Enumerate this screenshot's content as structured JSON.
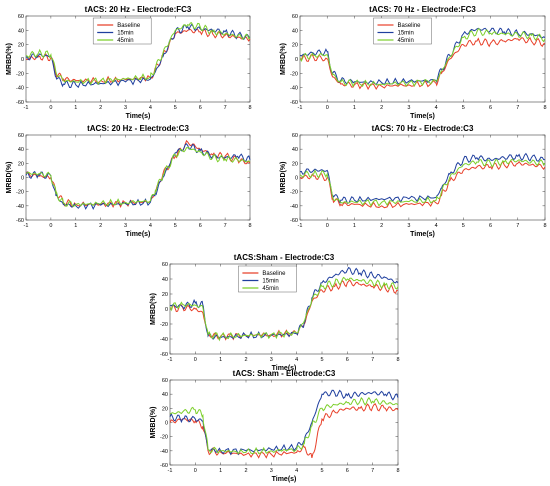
{
  "colors": {
    "Baseline": "#e8402a",
    "15min": "#1f3f9e",
    "45min": "#7ccf2a"
  },
  "chart_data": [
    {
      "type": "line",
      "title": "tACS: 20 Hz - Electrode:FC3",
      "xlabel": "Time(s)",
      "ylabel": "MRBD(%)",
      "xlim": [
        -1,
        8
      ],
      "ylim": [
        -60,
        60
      ],
      "xticks": [
        -1,
        0,
        1,
        2,
        3,
        4,
        5,
        6,
        7,
        8
      ],
      "yticks": [
        -60,
        -40,
        -20,
        0,
        20,
        40,
        60
      ],
      "legend": {
        "entries": [
          "Baseline",
          "15min",
          "45min"
        ],
        "placement": "top-center"
      },
      "series": [
        {
          "name": "Baseline",
          "x": [
            -1,
            -0.5,
            0,
            0.2,
            0.5,
            1,
            2,
            3,
            4,
            4.2,
            4.5,
            5,
            5.5,
            6,
            6.5,
            7,
            7.5,
            8
          ],
          "y": [
            0,
            3,
            2,
            -20,
            -28,
            -30,
            -30,
            -29,
            -26,
            -15,
            5,
            35,
            40,
            38,
            35,
            33,
            30,
            28
          ]
        },
        {
          "name": "15min",
          "x": [
            -1,
            -0.5,
            0,
            0.2,
            0.5,
            1,
            2,
            3,
            4,
            4.2,
            4.5,
            5,
            5.5,
            6,
            6.5,
            7,
            7.5,
            8
          ],
          "y": [
            2,
            5,
            4,
            -25,
            -35,
            -36,
            -34,
            -32,
            -28,
            -18,
            3,
            38,
            45,
            42,
            40,
            38,
            33,
            30
          ]
        },
        {
          "name": "45min",
          "x": [
            -1,
            -0.5,
            0,
            0.2,
            0.5,
            1,
            2,
            3,
            4,
            4.2,
            4.5,
            5,
            5.5,
            6,
            6.5,
            7,
            7.5,
            8
          ],
          "y": [
            5,
            8,
            6,
            -18,
            -30,
            -32,
            -30,
            -28,
            -25,
            -12,
            8,
            40,
            48,
            45,
            38,
            35,
            32,
            30
          ]
        }
      ]
    },
    {
      "type": "line",
      "title": "tACS: 70 Hz - Electrode:FC3",
      "xlabel": "Time(s)",
      "ylabel": "MRBD(%)",
      "xlim": [
        -1,
        8
      ],
      "ylim": [
        -60,
        60
      ],
      "xticks": [
        -1,
        0,
        1,
        2,
        3,
        4,
        5,
        6,
        7,
        8
      ],
      "yticks": [
        -60,
        -40,
        -20,
        0,
        20,
        40,
        60
      ],
      "legend": {
        "entries": [
          "Baseline",
          "15min",
          "45min"
        ],
        "placement": "top-center"
      },
      "series": [
        {
          "name": "Baseline",
          "x": [
            -1,
            -0.5,
            0,
            0.2,
            0.5,
            1,
            2,
            3,
            4,
            4.2,
            4.5,
            5,
            5.5,
            6,
            6.5,
            7,
            7.5,
            8
          ],
          "y": [
            0,
            2,
            0,
            -25,
            -35,
            -36,
            -38,
            -36,
            -34,
            -20,
            0,
            20,
            25,
            22,
            25,
            28,
            25,
            22
          ]
        },
        {
          "name": "15min",
          "x": [
            -1,
            -0.5,
            0,
            0.2,
            0.5,
            1,
            2,
            3,
            4,
            4.2,
            4.5,
            5,
            5.5,
            6,
            6.5,
            7,
            7.5,
            8
          ],
          "y": [
            5,
            8,
            10,
            -20,
            -30,
            -32,
            -33,
            -31,
            -30,
            -15,
            5,
            35,
            42,
            40,
            38,
            36,
            35,
            30
          ]
        },
        {
          "name": "45min",
          "x": [
            -1,
            -0.5,
            0,
            0.2,
            0.5,
            1,
            2,
            3,
            4,
            4.2,
            4.5,
            5,
            5.5,
            6,
            6.5,
            7,
            7.5,
            8
          ],
          "y": [
            2,
            5,
            6,
            -22,
            -32,
            -34,
            -35,
            -33,
            -31,
            -17,
            3,
            30,
            38,
            36,
            35,
            34,
            33,
            28
          ]
        }
      ]
    },
    {
      "type": "line",
      "title": "tACS: 20 Hz - Electrode:C3",
      "xlabel": "Time(s)",
      "ylabel": "MRBD(%)",
      "xlim": [
        -1,
        8
      ],
      "ylim": [
        -60,
        60
      ],
      "xticks": [
        -1,
        0,
        1,
        2,
        3,
        4,
        5,
        6,
        7,
        8
      ],
      "yticks": [
        -60,
        -40,
        -20,
        0,
        20,
        40,
        60
      ],
      "series": [
        {
          "name": "Baseline",
          "x": [
            -1,
            -0.5,
            0,
            0.2,
            0.5,
            1,
            2,
            3,
            4,
            4.2,
            4.5,
            5,
            5.5,
            6,
            6.5,
            7,
            7.5,
            8
          ],
          "y": [
            5,
            2,
            0,
            -20,
            -35,
            -38,
            -38,
            -36,
            -34,
            -20,
            5,
            30,
            50,
            40,
            32,
            30,
            25,
            20
          ]
        },
        {
          "name": "15min",
          "x": [
            -1,
            -0.5,
            0,
            0.2,
            0.5,
            1,
            2,
            3,
            4,
            4.2,
            4.5,
            5,
            5.5,
            6,
            6.5,
            7,
            7.5,
            8
          ],
          "y": [
            3,
            4,
            2,
            -25,
            -38,
            -40,
            -39,
            -37,
            -35,
            -22,
            0,
            35,
            45,
            38,
            30,
            28,
            30,
            25
          ]
        },
        {
          "name": "45min",
          "x": [
            -1,
            -0.5,
            0,
            0.2,
            0.5,
            1,
            2,
            3,
            4,
            4.2,
            4.5,
            5,
            5.5,
            6,
            6.5,
            7,
            7.5,
            8
          ],
          "y": [
            6,
            5,
            3,
            -22,
            -36,
            -38,
            -37,
            -35,
            -33,
            -18,
            3,
            32,
            42,
            36,
            28,
            26,
            25,
            22
          ]
        }
      ]
    },
    {
      "type": "line",
      "title": "tACS: 70 Hz - Electrode:C3",
      "xlabel": "Time(s)",
      "ylabel": "MRBD(%)",
      "xlim": [
        -1,
        8
      ],
      "ylim": [
        -60,
        60
      ],
      "xticks": [
        -1,
        0,
        1,
        2,
        3,
        4,
        5,
        6,
        7,
        8
      ],
      "yticks": [
        -60,
        -40,
        -20,
        0,
        20,
        40,
        60
      ],
      "series": [
        {
          "name": "Baseline",
          "x": [
            -1,
            -0.5,
            0,
            0.2,
            0.5,
            1,
            2,
            3,
            4,
            4.2,
            4.5,
            5,
            5.5,
            6,
            6.5,
            7,
            7.5,
            8
          ],
          "y": [
            0,
            2,
            0,
            -30,
            -38,
            -38,
            -40,
            -38,
            -36,
            -25,
            -5,
            10,
            15,
            15,
            18,
            20,
            18,
            15
          ]
        },
        {
          "name": "15min",
          "x": [
            -1,
            -0.5,
            0,
            0.2,
            0.5,
            1,
            2,
            3,
            4,
            4.2,
            4.5,
            5,
            5.5,
            6,
            6.5,
            7,
            7.5,
            8
          ],
          "y": [
            8,
            10,
            10,
            -25,
            -32,
            -32,
            -30,
            -30,
            -28,
            -15,
            5,
            25,
            28,
            25,
            28,
            30,
            28,
            25
          ]
        },
        {
          "name": "45min",
          "x": [
            -1,
            -0.5,
            0,
            0.2,
            0.5,
            1,
            2,
            3,
            4,
            4.2,
            4.5,
            5,
            5.5,
            6,
            6.5,
            7,
            7.5,
            8
          ],
          "y": [
            4,
            5,
            5,
            -28,
            -35,
            -35,
            -35,
            -34,
            -32,
            -20,
            0,
            18,
            22,
            20,
            22,
            24,
            22,
            20
          ]
        }
      ]
    },
    {
      "type": "line",
      "title": "tACS:Sham - Electrode:C3",
      "xlabel": "Time(s)",
      "ylabel": "MRBD(%)",
      "xlim": [
        -1,
        8
      ],
      "ylim": [
        -60,
        60
      ],
      "xticks": [
        -1,
        0,
        1,
        2,
        3,
        4,
        5,
        6,
        7,
        8
      ],
      "yticks": [
        -60,
        -40,
        -20,
        0,
        20,
        40,
        60
      ],
      "legend": {
        "entries": [
          "Baseline",
          "15min",
          "45min"
        ],
        "placement": "top-center"
      },
      "series": [
        {
          "name": "Baseline",
          "x": [
            -1,
            -0.5,
            0,
            0.3,
            0.5,
            1,
            2,
            3,
            4,
            4.3,
            4.6,
            5,
            5.5,
            6,
            6.5,
            7,
            7.5,
            8
          ],
          "y": [
            0,
            2,
            0,
            -5,
            -35,
            -36,
            -35,
            -34,
            -32,
            -20,
            10,
            25,
            30,
            35,
            33,
            30,
            28,
            25
          ]
        },
        {
          "name": "15min",
          "x": [
            -1,
            -0.5,
            0,
            0.3,
            0.5,
            1,
            2,
            3,
            4,
            4.3,
            4.6,
            5,
            5.5,
            6,
            6.5,
            7,
            7.5,
            8
          ],
          "y": [
            5,
            3,
            8,
            5,
            -36,
            -38,
            -36,
            -35,
            -33,
            -18,
            15,
            35,
            45,
            52,
            48,
            45,
            42,
            35
          ]
        },
        {
          "name": "45min",
          "x": [
            -1,
            -0.5,
            0,
            0.3,
            0.5,
            1,
            2,
            3,
            4,
            4.3,
            4.6,
            5,
            5.5,
            6,
            6.5,
            7,
            7.5,
            8
          ],
          "y": [
            3,
            6,
            5,
            2,
            -34,
            -37,
            -35,
            -34,
            -32,
            -16,
            12,
            30,
            35,
            40,
            38,
            35,
            32,
            30
          ]
        }
      ]
    },
    {
      "type": "line",
      "title": "tACS: Sham - Electrode:C3",
      "xlabel": "Time(s)",
      "ylabel": "MRBD(%)",
      "xlim": [
        -1,
        8
      ],
      "ylim": [
        -60,
        60
      ],
      "xticks": [
        -1,
        0,
        1,
        2,
        3,
        4,
        5,
        6,
        7,
        8
      ],
      "yticks": [
        -60,
        -40,
        -20,
        0,
        20,
        40,
        60
      ],
      "series": [
        {
          "name": "Baseline",
          "x": [
            -1,
            -0.5,
            0,
            0.3,
            0.5,
            1,
            2,
            3,
            4,
            4.3,
            4.6,
            5,
            5.5,
            6,
            6.5,
            7,
            7.5,
            8
          ],
          "y": [
            0,
            5,
            2,
            -5,
            -40,
            -42,
            -45,
            -45,
            -42,
            -35,
            -50,
            5,
            15,
            20,
            20,
            22,
            20,
            18
          ]
        },
        {
          "name": "15min",
          "x": [
            -1,
            -0.5,
            0,
            0.3,
            0.5,
            1,
            2,
            3,
            4,
            4.3,
            4.6,
            5,
            5.5,
            6,
            6.5,
            7,
            7.5,
            8
          ],
          "y": [
            8,
            5,
            5,
            2,
            -38,
            -40,
            -40,
            -38,
            -35,
            -25,
            0,
            40,
            42,
            38,
            40,
            42,
            40,
            35
          ]
        },
        {
          "name": "45min",
          "x": [
            -1,
            -0.5,
            0,
            0.3,
            0.5,
            1,
            2,
            3,
            4,
            4.3,
            4.6,
            5,
            5.5,
            6,
            6.5,
            7,
            7.5,
            8
          ],
          "y": [
            12,
            15,
            18,
            10,
            -38,
            -40,
            -42,
            -40,
            -38,
            -30,
            -5,
            20,
            25,
            28,
            30,
            30,
            28,
            25
          ]
        }
      ]
    }
  ]
}
